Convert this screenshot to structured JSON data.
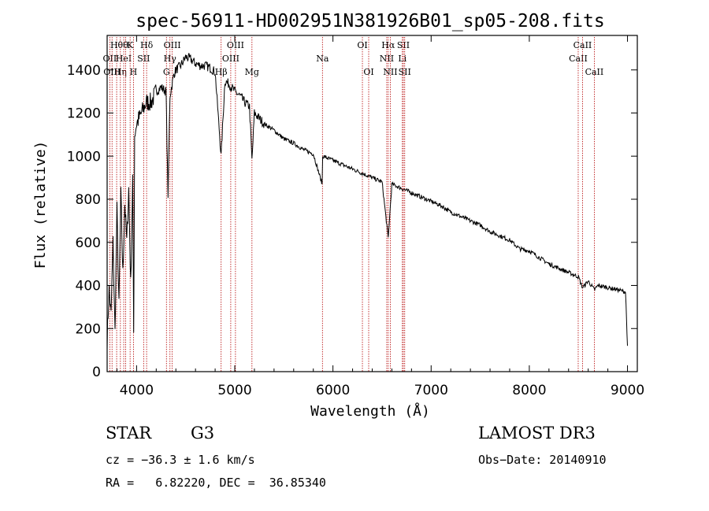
{
  "chart_data": {
    "type": "line",
    "title": "spec-56911-HD002951N381926B01_sp05-208.fits",
    "xlabel": "Wavelength (Å)",
    "ylabel": "Flux (relative)",
    "xlim": [
      3700,
      9100
    ],
    "ylim": [
      0,
      1560
    ],
    "xticks": [
      4000,
      5000,
      6000,
      7000,
      8000,
      9000
    ],
    "yticks": [
      0,
      200,
      400,
      600,
      800,
      1000,
      1200,
      1400
    ],
    "xtick_labels": [
      "4000",
      "5000",
      "6000",
      "7000",
      "8000",
      "9000"
    ],
    "ytick_labels": [
      "0",
      "200",
      "400",
      "600",
      "800",
      "1000",
      "1200",
      "1400"
    ],
    "series": [
      {
        "name": "flux",
        "x": [
          3700,
          3720,
          3740,
          3760,
          3780,
          3800,
          3820,
          3840,
          3860,
          3880,
          3900,
          3920,
          3940,
          3960,
          3970,
          3980,
          4000,
          4050,
          4100,
          4150,
          4200,
          4250,
          4300,
          4320,
          4340,
          4380,
          4400,
          4450,
          4500,
          4550,
          4600,
          4650,
          4700,
          4750,
          4800,
          4861,
          4900,
          4950,
          5000,
          5050,
          5100,
          5150,
          5175,
          5200,
          5300,
          5400,
          5500,
          5600,
          5700,
          5800,
          5890,
          5895,
          5950,
          6000,
          6100,
          6200,
          6300,
          6400,
          6500,
          6563,
          6600,
          6700,
          6800,
          6900,
          7000,
          7100,
          7200,
          7300,
          7400,
          7500,
          7600,
          7700,
          7800,
          7900,
          8000,
          8100,
          8200,
          8300,
          8400,
          8500,
          8542,
          8600,
          8662,
          8700,
          8800,
          8900,
          8980,
          9000
        ],
        "y": [
          150,
          380,
          260,
          600,
          180,
          750,
          300,
          820,
          450,
          780,
          600,
          850,
          400,
          900,
          180,
          1100,
          1150,
          1200,
          1250,
          1250,
          1300,
          1320,
          1300,
          820,
          1280,
          1380,
          1400,
          1420,
          1460,
          1450,
          1430,
          1420,
          1420,
          1410,
          1390,
          1000,
          1350,
          1330,
          1300,
          1280,
          1250,
          1230,
          980,
          1200,
          1150,
          1120,
          1080,
          1060,
          1030,
          1010,
          870,
          1000,
          990,
          980,
          960,
          940,
          920,
          900,
          880,
          620,
          870,
          850,
          830,
          810,
          790,
          770,
          740,
          720,
          700,
          680,
          650,
          630,
          610,
          570,
          560,
          530,
          500,
          480,
          460,
          440,
          390,
          420,
          380,
          400,
          390,
          380,
          370,
          120
        ]
      }
    ],
    "lines": [
      {
        "w": 3727,
        "label": "OII",
        "tier": 1
      },
      {
        "w": 3750,
        "label": "OIII",
        "tier": 2
      },
      {
        "w": 3797,
        "label": "Hθ",
        "tier": 0
      },
      {
        "w": 3835,
        "label": "Hη",
        "tier": 2
      },
      {
        "w": 3869,
        "label": "HeI",
        "tier": 1
      },
      {
        "w": 3889,
        "label": "θ",
        "tier": 0
      },
      {
        "w": 3934,
        "label": "K",
        "tier": 0
      },
      {
        "w": 3968,
        "label": "H",
        "tier": 2
      },
      {
        "w": 4072,
        "label": "SII",
        "tier": 1
      },
      {
        "w": 4102,
        "label": "Hδ",
        "tier": 0
      },
      {
        "w": 4304,
        "label": "G",
        "tier": 2
      },
      {
        "w": 4340,
        "label": "Hγ",
        "tier": 1
      },
      {
        "w": 4363,
        "label": "OIII",
        "tier": 0
      },
      {
        "w": 4861,
        "label": "Hβ",
        "tier": 2
      },
      {
        "w": 4959,
        "label": "OIII",
        "tier": 1
      },
      {
        "w": 5007,
        "label": "OIII",
        "tier": 0
      },
      {
        "w": 5175,
        "label": "Mg",
        "tier": 2
      },
      {
        "w": 5893,
        "label": "Na",
        "tier": 1
      },
      {
        "w": 6300,
        "label": "OI",
        "tier": 0
      },
      {
        "w": 6364,
        "label": "OI",
        "tier": 2
      },
      {
        "w": 6548,
        "label": "NII",
        "tier": 1
      },
      {
        "w": 6563,
        "label": "Hα",
        "tier": 0
      },
      {
        "w": 6584,
        "label": "NII",
        "tier": 2
      },
      {
        "w": 6707,
        "label": "Li",
        "tier": 1
      },
      {
        "w": 6717,
        "label": "SII",
        "tier": 0
      },
      {
        "w": 6731,
        "label": "SII",
        "tier": 2
      },
      {
        "w": 8498,
        "label": "CaII",
        "tier": 1
      },
      {
        "w": 8542,
        "label": "CaII",
        "tier": 0
      },
      {
        "w": 8662,
        "label": "CaII",
        "tier": 2
      }
    ],
    "colors": {
      "line_marker": "#b40000",
      "spectrum": "#000000",
      "axes": "#000000"
    }
  },
  "info": {
    "object_class": "STAR",
    "subclass": "G3",
    "survey": "LAMOST DR3",
    "cz": "cz = −36.3 ± 1.6 km/s",
    "obs_date": "Obs−Date: 20140910",
    "radec": "RA =   6.82220, DEC =  36.85340"
  }
}
